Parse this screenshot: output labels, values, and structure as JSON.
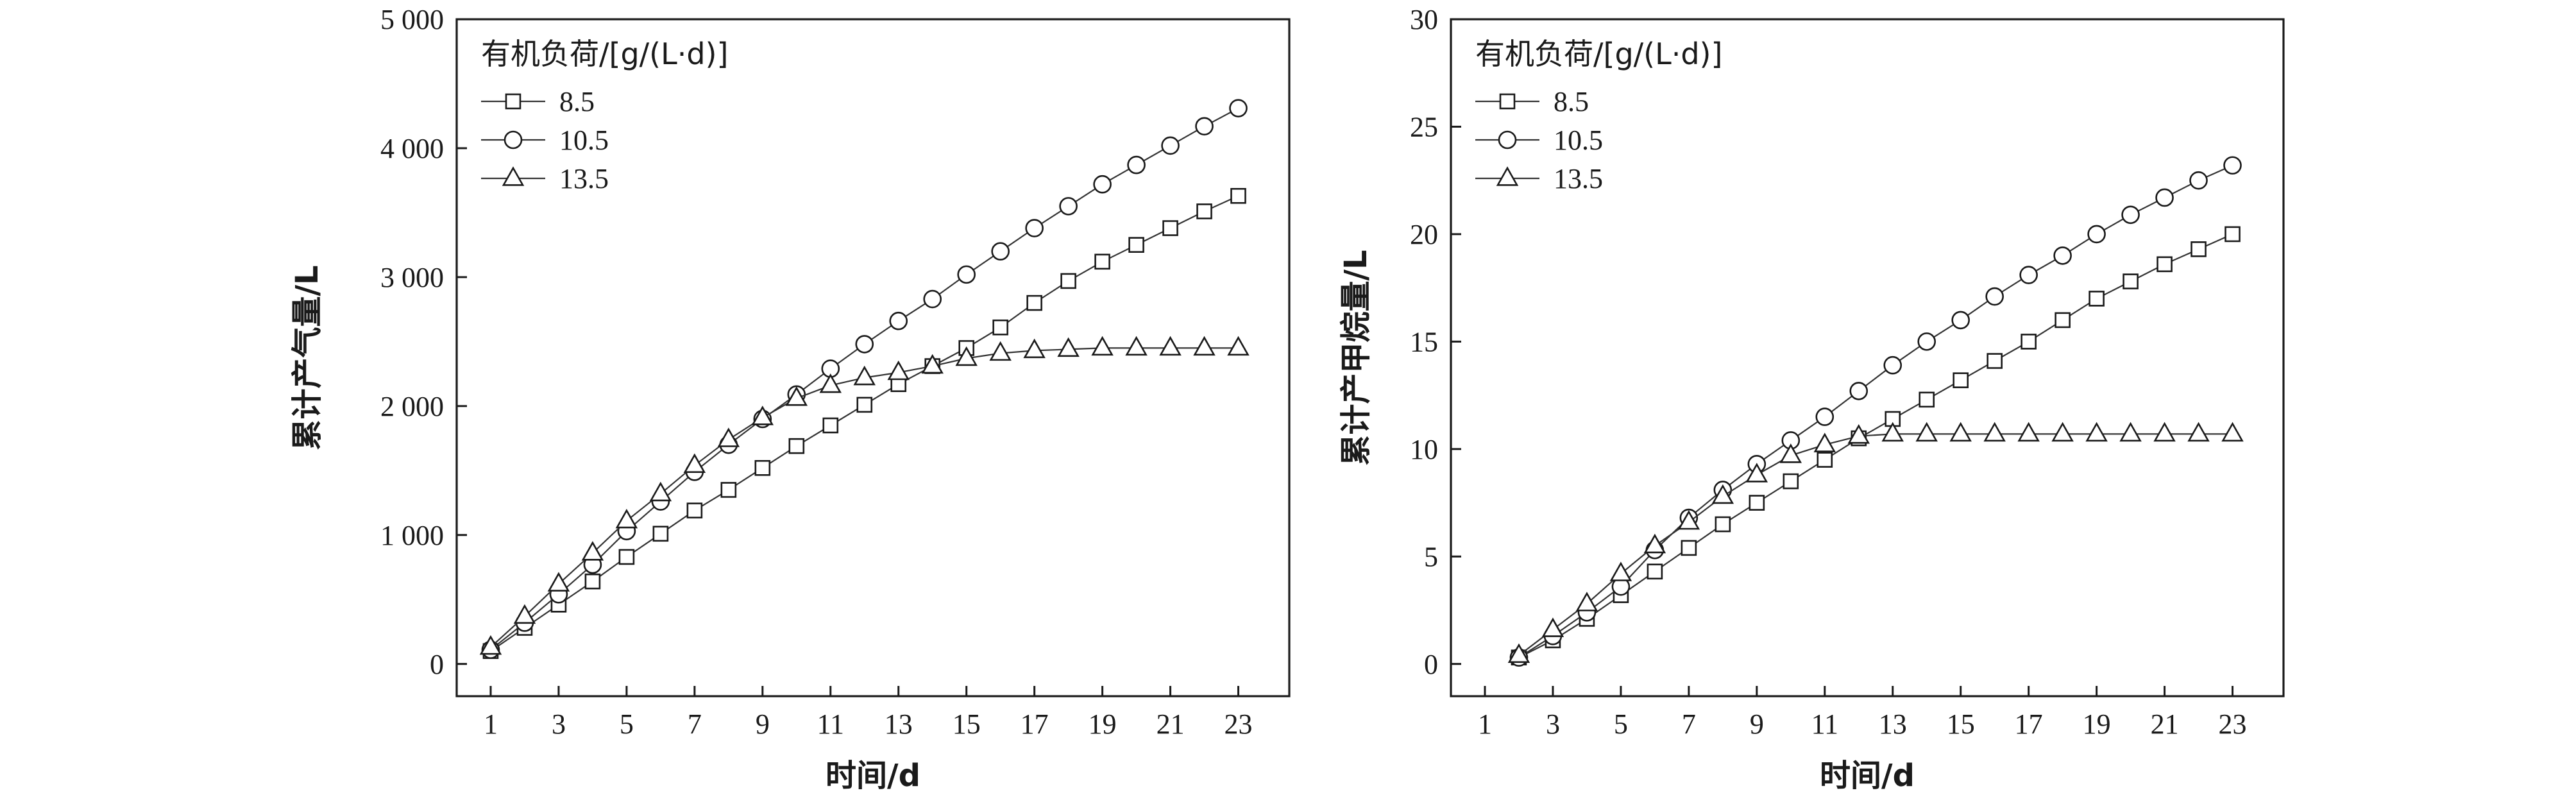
{
  "chart_data": [
    {
      "type": "line",
      "title": "",
      "xlabel": "时间/d",
      "ylabel": "累计产气量/L",
      "xlim": [
        0,
        24.5
      ],
      "ylim": [
        -250,
        5000
      ],
      "xticks": [
        1,
        3,
        5,
        7,
        9,
        11,
        13,
        15,
        17,
        19,
        21,
        23
      ],
      "yticks": [
        0,
        1000,
        2000,
        3000,
        4000,
        5000
      ],
      "ytick_labels": [
        "0",
        "1 000",
        "2 000",
        "3 000",
        "4 000",
        "5 000"
      ],
      "legend": {
        "title": "有机负荷/[g/(L·d)]",
        "position": "top-left"
      },
      "series": [
        {
          "name": "8.5",
          "marker": "square",
          "x": [
            1,
            2,
            3,
            4,
            5,
            6,
            7,
            8,
            9,
            10,
            11,
            12,
            13,
            14,
            15,
            16,
            17,
            18,
            19,
            20,
            21,
            22,
            23
          ],
          "y": [
            100,
            280,
            460,
            640,
            830,
            1010,
            1190,
            1350,
            1520,
            1690,
            1850,
            2010,
            2170,
            2310,
            2450,
            2610,
            2800,
            2970,
            3120,
            3250,
            3380,
            3510,
            3630
          ]
        },
        {
          "name": "10.5",
          "marker": "circle",
          "x": [
            1,
            2,
            3,
            4,
            5,
            6,
            7,
            8,
            9,
            10,
            11,
            12,
            13,
            14,
            15,
            16,
            17,
            18,
            19,
            20,
            21,
            22,
            23
          ],
          "y": [
            110,
            320,
            540,
            770,
            1030,
            1260,
            1490,
            1700,
            1900,
            2090,
            2290,
            2480,
            2660,
            2830,
            3020,
            3200,
            3380,
            3550,
            3720,
            3870,
            4020,
            4170,
            4310
          ]
        },
        {
          "name": "13.5",
          "marker": "triangle",
          "x": [
            1,
            2,
            3,
            4,
            5,
            6,
            7,
            8,
            9,
            10,
            11,
            12,
            13,
            14,
            15,
            16,
            17,
            18,
            19,
            20,
            21,
            22,
            23
          ],
          "y": [
            130,
            370,
            620,
            860,
            1110,
            1320,
            1540,
            1740,
            1910,
            2060,
            2160,
            2220,
            2260,
            2310,
            2370,
            2410,
            2430,
            2440,
            2450,
            2450,
            2450,
            2450,
            2450
          ]
        }
      ]
    },
    {
      "type": "line",
      "title": "",
      "xlabel": "时间/d",
      "ylabel": "累计产甲烷量/L",
      "xlim": [
        0,
        24.5
      ],
      "ylim": [
        -1.5,
        30
      ],
      "xticks": [
        1,
        3,
        5,
        7,
        9,
        11,
        13,
        15,
        17,
        19,
        21,
        23
      ],
      "yticks": [
        0,
        5,
        10,
        15,
        20,
        25,
        30
      ],
      "ytick_labels": [
        "0",
        "5",
        "10",
        "15",
        "20",
        "25",
        "30"
      ],
      "legend": {
        "title": "有机负荷/[g/(L·d)]",
        "position": "top-left"
      },
      "series": [
        {
          "name": "8.5",
          "marker": "square",
          "x": [
            2,
            3,
            4,
            5,
            6,
            7,
            8,
            9,
            10,
            11,
            12,
            13,
            14,
            15,
            16,
            17,
            18,
            19,
            20,
            21,
            22,
            23
          ],
          "y": [
            0.3,
            1.1,
            2.1,
            3.2,
            4.3,
            5.4,
            6.5,
            7.5,
            8.5,
            9.5,
            10.5,
            11.4,
            12.3,
            13.2,
            14.1,
            15.0,
            16.0,
            17.0,
            17.8,
            18.6,
            19.3,
            20.0
          ]
        },
        {
          "name": "10.5",
          "marker": "circle",
          "x": [
            2,
            3,
            4,
            5,
            6,
            7,
            8,
            9,
            10,
            11,
            12,
            13,
            14,
            15,
            16,
            17,
            18,
            19,
            20,
            21,
            22,
            23
          ],
          "y": [
            0.3,
            1.3,
            2.4,
            3.6,
            5.3,
            6.8,
            8.1,
            9.3,
            10.4,
            11.5,
            12.7,
            13.9,
            15.0,
            16.0,
            17.1,
            18.1,
            19.0,
            20.0,
            20.9,
            21.7,
            22.5,
            23.2
          ]
        },
        {
          "name": "13.5",
          "marker": "triangle",
          "x": [
            2,
            3,
            4,
            5,
            6,
            7,
            8,
            9,
            10,
            11,
            12,
            13,
            14,
            15,
            16,
            17,
            18,
            19,
            20,
            21,
            22,
            23
          ],
          "y": [
            0.4,
            1.6,
            2.8,
            4.2,
            5.5,
            6.6,
            7.8,
            8.8,
            9.7,
            10.2,
            10.6,
            10.7,
            10.7,
            10.7,
            10.7,
            10.7,
            10.7,
            10.7,
            10.7,
            10.7,
            10.7,
            10.7
          ]
        }
      ]
    }
  ]
}
